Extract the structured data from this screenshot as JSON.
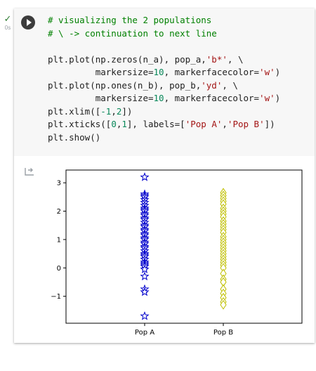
{
  "cell": {
    "status_icon": "check-icon",
    "exec_time": "0s",
    "run_icon": "play-icon",
    "code_lines": [
      [
        {
          "t": "# visualizing the 2 populations",
          "c": "cm"
        }
      ],
      [
        {
          "t": "# \\ -> continuation to next line",
          "c": "cm"
        }
      ],
      [],
      [
        {
          "t": "plt.plot(np.zeros(n_a), pop_a,",
          "c": ""
        },
        {
          "t": "'b*'",
          "c": "st"
        },
        {
          "t": ", \\",
          "c": ""
        }
      ],
      [
        {
          "t": "         markersize=",
          "c": ""
        },
        {
          "t": "10",
          "c": "nu"
        },
        {
          "t": ", markerfacecolor=",
          "c": ""
        },
        {
          "t": "'w'",
          "c": "st"
        },
        {
          "t": ")",
          "c": ""
        }
      ],
      [
        {
          "t": "plt.plot(np.ones(n_b), pop_b,",
          "c": ""
        },
        {
          "t": "'yd'",
          "c": "st"
        },
        {
          "t": ", \\",
          "c": ""
        }
      ],
      [
        {
          "t": "         markersize=",
          "c": ""
        },
        {
          "t": "10",
          "c": "nu"
        },
        {
          "t": ", markerfacecolor=",
          "c": ""
        },
        {
          "t": "'w'",
          "c": "st"
        },
        {
          "t": ")",
          "c": ""
        }
      ],
      [
        {
          "t": "plt.xlim([",
          "c": ""
        },
        {
          "t": "-1",
          "c": "nu"
        },
        {
          "t": ",",
          "c": ""
        },
        {
          "t": "2",
          "c": "nu"
        },
        {
          "t": "])",
          "c": ""
        }
      ],
      [
        {
          "t": "plt.xticks([",
          "c": ""
        },
        {
          "t": "0",
          "c": "nu"
        },
        {
          "t": ",",
          "c": ""
        },
        {
          "t": "1",
          "c": "nu"
        },
        {
          "t": "], labels=[",
          "c": ""
        },
        {
          "t": "'Pop A'",
          "c": "st"
        },
        {
          "t": ",",
          "c": ""
        },
        {
          "t": "'Pop B'",
          "c": "st"
        },
        {
          "t": "])",
          "c": ""
        }
      ],
      [
        {
          "t": "plt.show()",
          "c": ""
        }
      ]
    ]
  },
  "output": {
    "icon": "output-arrow-icon"
  },
  "chart_data": {
    "type": "scatter",
    "xlim": [
      -1,
      2
    ],
    "ylim": [
      -1.95,
      3.45
    ],
    "xticks": [
      0,
      1
    ],
    "xtick_labels": [
      "Pop A",
      "Pop B"
    ],
    "yticks": [
      -1,
      0,
      1,
      2,
      3
    ],
    "ytick_labels": [
      "−1",
      "0",
      "1",
      "2",
      "3"
    ],
    "grid": false,
    "series": [
      {
        "marker": "star",
        "color": "#0000cc",
        "x": 0,
        "y": [
          3.2,
          2.6,
          2.55,
          2.5,
          2.4,
          2.3,
          2.2,
          2.1,
          2.05,
          2.0,
          1.9,
          1.85,
          1.75,
          1.7,
          1.6,
          1.5,
          1.45,
          1.35,
          1.3,
          1.2,
          1.15,
          1.05,
          1.0,
          0.9,
          0.85,
          0.75,
          0.7,
          0.6,
          0.5,
          0.45,
          0.4,
          0.3,
          0.2,
          0.15,
          0.1,
          0.05,
          -0.05,
          -0.3,
          -0.75,
          -0.85,
          -1.7
        ]
      },
      {
        "marker": "diamond",
        "color": "#bfbf00",
        "x": 1,
        "y": [
          2.65,
          2.55,
          2.45,
          2.35,
          2.25,
          2.1,
          2.0,
          1.9,
          1.8,
          1.65,
          1.55,
          1.45,
          1.35,
          1.25,
          1.1,
          1.0,
          0.9,
          0.8,
          0.7,
          0.6,
          0.5,
          0.4,
          0.3,
          0.2,
          0.1,
          0.0,
          -0.2,
          -0.4,
          -0.5,
          -0.75,
          -0.9,
          -1.05,
          -1.2,
          -1.3
        ]
      }
    ]
  }
}
